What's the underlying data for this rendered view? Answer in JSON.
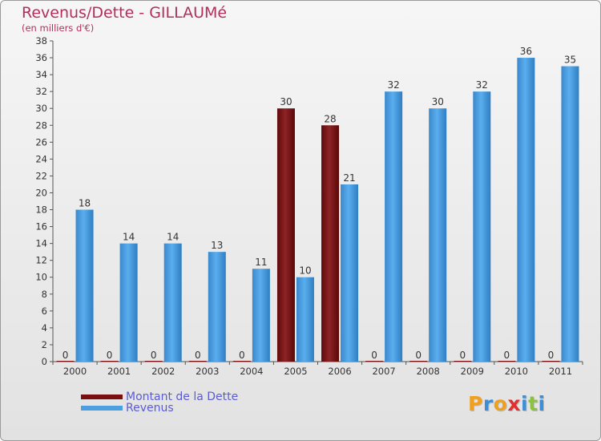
{
  "header": {
    "title": "Revenus/Dette - GILLAUMé",
    "subtitle": "(en milliers d'€)"
  },
  "chart_data": {
    "type": "bar",
    "title": "Revenus/Dette - GILLAUMé",
    "subtitle": "(en milliers d'€)",
    "categories": [
      "2000",
      "2001",
      "2002",
      "2003",
      "2004",
      "2005",
      "2006",
      "2007",
      "2008",
      "2009",
      "2010",
      "2011"
    ],
    "series": [
      {
        "name": "Montant de la Dette",
        "color": "#7a0f12",
        "values": [
          0,
          0,
          0,
          0,
          0,
          30,
          28,
          0,
          0,
          0,
          0,
          0
        ]
      },
      {
        "name": "Revenus",
        "color": "#4a9fe0",
        "values": [
          18,
          14,
          14,
          13,
          11,
          10,
          21,
          32,
          30,
          32,
          36,
          35
        ]
      }
    ],
    "ylim": [
      0,
      38
    ],
    "yticks": [
      0,
      2,
      4,
      6,
      8,
      10,
      12,
      14,
      16,
      18,
      20,
      22,
      24,
      26,
      28,
      30,
      32,
      34,
      36,
      38
    ],
    "grid": false,
    "legend_position": "bottom-left"
  },
  "legend": [
    {
      "label": "Montant de la Dette",
      "color": "#7a0f12"
    },
    {
      "label": "Revenus",
      "color": "#4a9fe0"
    }
  ],
  "logo": {
    "letters": [
      "P",
      "r",
      "o",
      "x",
      "i",
      "t",
      "i"
    ],
    "colors": [
      "#f0a020",
      "#3b8fd8",
      "#f0a020",
      "#e03030",
      "#3b8fd8",
      "#8ac43f",
      "#3b8fd8"
    ]
  }
}
